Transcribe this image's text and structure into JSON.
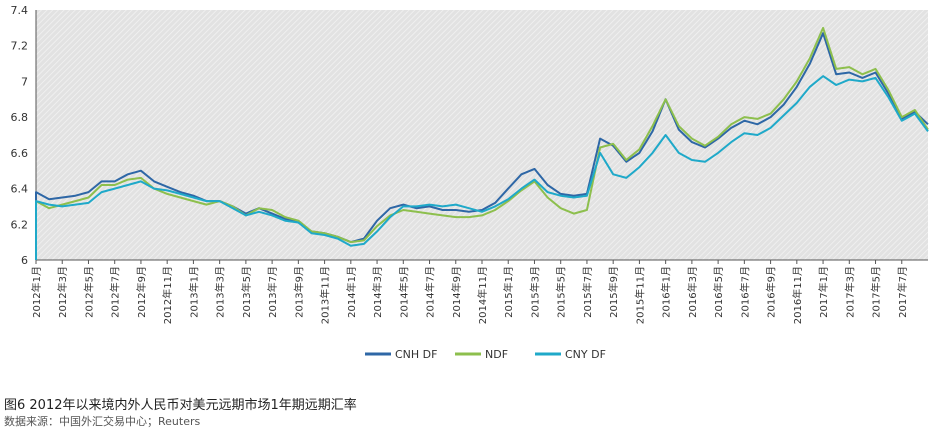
{
  "caption": {
    "title": "图6 2012年以来境内外人民币对美元远期市场1年期远期汇率",
    "source": "数据来源：中国外汇交易中心；Reuters"
  },
  "colors": {
    "cnh_df": "#2e67a6",
    "ndf": "#8dbf4d",
    "cny_df": "#1fa9c9",
    "plot_bg": "#e2e2e2",
    "hatch": "#f4f4f4"
  },
  "chart_data": {
    "type": "line",
    "title": "",
    "xlabel": "",
    "ylabel": "",
    "ylim": [
      6,
      7.4
    ],
    "yticks": [
      "6",
      "6.2",
      "6.4",
      "6.6",
      "6.8",
      "7",
      "7.2",
      "7.4"
    ],
    "xlim": [
      "2012-01",
      "2017-09"
    ],
    "xticks": [
      "2012年1月",
      "2012年3月",
      "2012年5月",
      "2012年7月",
      "2012年9月",
      "2012年11月",
      "2013年1月",
      "2013年3月",
      "2013年5月",
      "2013年7月",
      "2013年9月",
      "2013年11月",
      "2014年1月",
      "2014年3月",
      "2014年5月",
      "2014年7月",
      "2014年9月",
      "2014年11月",
      "2015年1月",
      "2015年3月",
      "2015年5月",
      "2015年7月",
      "2015年9月",
      "2015年11月",
      "2016年1月",
      "2016年3月",
      "2016年5月",
      "2016年7月",
      "2016年9月",
      "2016年11月",
      "2017年1月",
      "2017年3月",
      "2017年5月",
      "2017年7月"
    ],
    "legend_position": "bottom-center",
    "grid": false,
    "x": [
      "2012-01",
      "2012-02",
      "2012-03",
      "2012-04",
      "2012-05",
      "2012-06",
      "2012-07",
      "2012-08",
      "2012-09",
      "2012-10",
      "2012-11",
      "2012-12",
      "2013-01",
      "2013-02",
      "2013-03",
      "2013-04",
      "2013-05",
      "2013-06",
      "2013-07",
      "2013-08",
      "2013-09",
      "2013-10",
      "2013-11",
      "2013-12",
      "2014-01",
      "2014-02",
      "2014-03",
      "2014-04",
      "2014-05",
      "2014-06",
      "2014-07",
      "2014-08",
      "2014-09",
      "2014-10",
      "2014-11",
      "2014-12",
      "2015-01",
      "2015-02",
      "2015-03",
      "2015-04",
      "2015-05",
      "2015-06",
      "2015-07",
      "2015-08",
      "2015-09",
      "2015-10",
      "2015-11",
      "2015-12",
      "2016-01",
      "2016-02",
      "2016-03",
      "2016-04",
      "2016-05",
      "2016-06",
      "2016-07",
      "2016-08",
      "2016-09",
      "2016-10",
      "2016-11",
      "2016-12",
      "2017-01",
      "2017-02",
      "2017-03",
      "2017-04",
      "2017-05",
      "2017-06",
      "2017-07",
      "2017-08",
      "2017-09"
    ],
    "series": [
      {
        "name": "CNH DF",
        "values": [
          6.38,
          6.34,
          6.35,
          6.36,
          6.38,
          6.44,
          6.44,
          6.48,
          6.5,
          6.44,
          6.41,
          6.38,
          6.36,
          6.33,
          6.33,
          6.3,
          6.26,
          6.29,
          6.26,
          6.23,
          6.21,
          6.16,
          6.15,
          6.13,
          6.1,
          6.12,
          6.22,
          6.29,
          6.31,
          6.29,
          6.3,
          6.28,
          6.28,
          6.27,
          6.28,
          6.32,
          6.4,
          6.48,
          6.51,
          6.42,
          6.37,
          6.36,
          6.37,
          6.68,
          6.64,
          6.55,
          6.6,
          6.72,
          6.9,
          6.73,
          6.66,
          6.63,
          6.68,
          6.74,
          6.78,
          6.76,
          6.8,
          6.87,
          6.97,
          7.1,
          7.27,
          7.04,
          7.05,
          7.02,
          7.05,
          6.93,
          6.79,
          6.83,
          6.76
        ]
      },
      {
        "name": "NDF",
        "values": [
          6.33,
          6.29,
          6.31,
          6.33,
          6.35,
          6.42,
          6.42,
          6.45,
          6.46,
          6.4,
          6.37,
          6.35,
          6.33,
          6.31,
          6.33,
          6.3,
          6.25,
          6.29,
          6.28,
          6.24,
          6.22,
          6.16,
          6.15,
          6.13,
          6.1,
          6.11,
          6.19,
          6.25,
          6.28,
          6.27,
          6.26,
          6.25,
          6.24,
          6.24,
          6.25,
          6.28,
          6.33,
          6.39,
          6.44,
          6.35,
          6.29,
          6.26,
          6.28,
          6.63,
          6.65,
          6.56,
          6.62,
          6.75,
          6.9,
          6.75,
          6.68,
          6.64,
          6.69,
          6.76,
          6.8,
          6.79,
          6.82,
          6.9,
          7.0,
          7.13,
          7.3,
          7.07,
          7.08,
          7.04,
          7.07,
          6.95,
          6.8,
          6.84,
          6.73
        ]
      },
      {
        "name": "CNY DF",
        "values": [
          6.33,
          6.31,
          6.3,
          6.31,
          6.32,
          6.38,
          6.4,
          6.42,
          6.44,
          6.4,
          6.39,
          6.37,
          6.35,
          6.33,
          6.33,
          6.29,
          6.25,
          6.27,
          6.25,
          6.22,
          6.21,
          6.15,
          6.14,
          6.12,
          6.08,
          6.09,
          6.16,
          6.24,
          6.3,
          6.3,
          6.31,
          6.3,
          6.31,
          6.29,
          6.27,
          6.3,
          6.34,
          6.4,
          6.45,
          6.38,
          6.36,
          6.35,
          6.36,
          6.6,
          6.48,
          6.46,
          6.52,
          6.6,
          6.7,
          6.6,
          6.56,
          6.55,
          6.6,
          6.66,
          6.71,
          6.7,
          6.74,
          6.81,
          6.88,
          6.97,
          7.03,
          6.98,
          7.01,
          7.0,
          7.02,
          6.91,
          6.78,
          6.82,
          6.72
        ]
      }
    ]
  }
}
